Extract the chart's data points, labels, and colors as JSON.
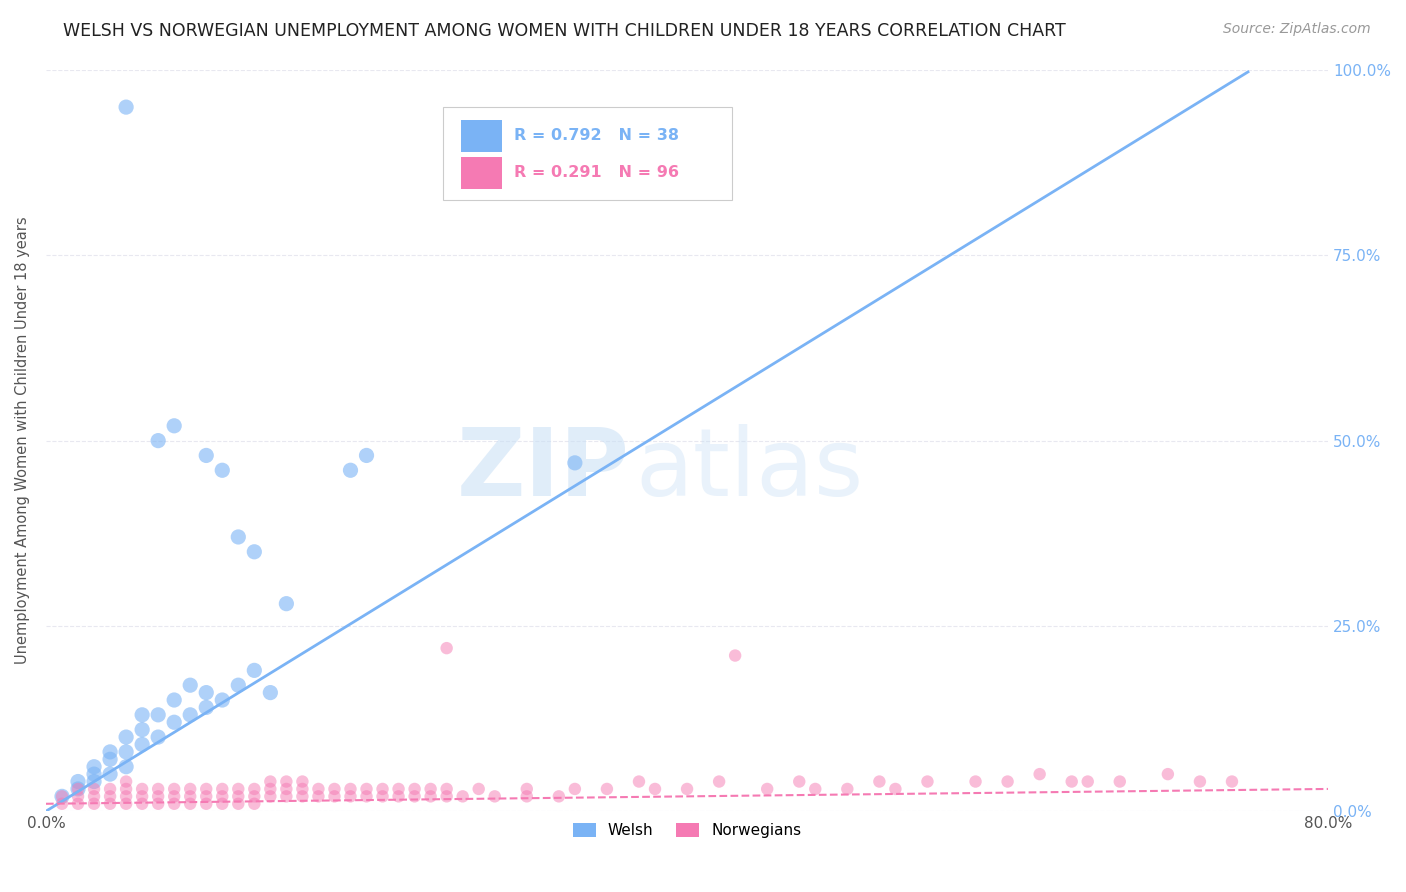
{
  "title": "WELSH VS NORWEGIAN UNEMPLOYMENT AMONG WOMEN WITH CHILDREN UNDER 18 YEARS CORRELATION CHART",
  "source": "Source: ZipAtlas.com",
  "ylabel": "Unemployment Among Women with Children Under 18 years",
  "xlim": [
    0.0,
    0.8
  ],
  "ylim": [
    0.0,
    1.0
  ],
  "xticks": [
    0.0,
    0.1,
    0.2,
    0.3,
    0.4,
    0.5,
    0.6,
    0.7,
    0.8
  ],
  "ytick_labels_right": [
    "0.0%",
    "25.0%",
    "50.0%",
    "75.0%",
    "100.0%"
  ],
  "yticks_right": [
    0.0,
    0.25,
    0.5,
    0.75,
    1.0
  ],
  "welsh_color": "#7ab3f5",
  "norwegian_color": "#f57ab3",
  "welsh_R": 0.792,
  "welsh_N": 38,
  "norwegian_R": 0.291,
  "norwegian_N": 96,
  "watermark_zip": "ZIP",
  "watermark_atlas": "atlas",
  "background_color": "#ffffff",
  "welsh_scatter": [
    [
      0.01,
      0.02
    ],
    [
      0.02,
      0.03
    ],
    [
      0.02,
      0.04
    ],
    [
      0.03,
      0.04
    ],
    [
      0.03,
      0.05
    ],
    [
      0.03,
      0.06
    ],
    [
      0.04,
      0.05
    ],
    [
      0.04,
      0.07
    ],
    [
      0.04,
      0.08
    ],
    [
      0.05,
      0.06
    ],
    [
      0.05,
      0.08
    ],
    [
      0.05,
      0.1
    ],
    [
      0.05,
      0.95
    ],
    [
      0.06,
      0.09
    ],
    [
      0.06,
      0.11
    ],
    [
      0.06,
      0.13
    ],
    [
      0.07,
      0.1
    ],
    [
      0.07,
      0.13
    ],
    [
      0.07,
      0.5
    ],
    [
      0.08,
      0.12
    ],
    [
      0.08,
      0.15
    ],
    [
      0.08,
      0.52
    ],
    [
      0.09,
      0.13
    ],
    [
      0.09,
      0.17
    ],
    [
      0.1,
      0.14
    ],
    [
      0.1,
      0.16
    ],
    [
      0.1,
      0.48
    ],
    [
      0.11,
      0.15
    ],
    [
      0.11,
      0.46
    ],
    [
      0.12,
      0.17
    ],
    [
      0.12,
      0.37
    ],
    [
      0.13,
      0.19
    ],
    [
      0.13,
      0.35
    ],
    [
      0.14,
      0.16
    ],
    [
      0.15,
      0.28
    ],
    [
      0.19,
      0.46
    ],
    [
      0.2,
      0.48
    ],
    [
      0.33,
      0.47
    ]
  ],
  "norwegian_scatter": [
    [
      0.01,
      0.01
    ],
    [
      0.01,
      0.02
    ],
    [
      0.02,
      0.01
    ],
    [
      0.02,
      0.02
    ],
    [
      0.02,
      0.03
    ],
    [
      0.03,
      0.01
    ],
    [
      0.03,
      0.02
    ],
    [
      0.03,
      0.03
    ],
    [
      0.04,
      0.01
    ],
    [
      0.04,
      0.02
    ],
    [
      0.04,
      0.03
    ],
    [
      0.05,
      0.01
    ],
    [
      0.05,
      0.02
    ],
    [
      0.05,
      0.03
    ],
    [
      0.05,
      0.04
    ],
    [
      0.06,
      0.01
    ],
    [
      0.06,
      0.02
    ],
    [
      0.06,
      0.03
    ],
    [
      0.07,
      0.01
    ],
    [
      0.07,
      0.02
    ],
    [
      0.07,
      0.03
    ],
    [
      0.08,
      0.01
    ],
    [
      0.08,
      0.02
    ],
    [
      0.08,
      0.03
    ],
    [
      0.09,
      0.01
    ],
    [
      0.09,
      0.02
    ],
    [
      0.09,
      0.03
    ],
    [
      0.1,
      0.01
    ],
    [
      0.1,
      0.02
    ],
    [
      0.1,
      0.03
    ],
    [
      0.11,
      0.01
    ],
    [
      0.11,
      0.02
    ],
    [
      0.11,
      0.03
    ],
    [
      0.12,
      0.01
    ],
    [
      0.12,
      0.02
    ],
    [
      0.12,
      0.03
    ],
    [
      0.13,
      0.01
    ],
    [
      0.13,
      0.02
    ],
    [
      0.13,
      0.03
    ],
    [
      0.14,
      0.02
    ],
    [
      0.14,
      0.03
    ],
    [
      0.14,
      0.04
    ],
    [
      0.15,
      0.02
    ],
    [
      0.15,
      0.03
    ],
    [
      0.15,
      0.04
    ],
    [
      0.16,
      0.02
    ],
    [
      0.16,
      0.03
    ],
    [
      0.16,
      0.04
    ],
    [
      0.17,
      0.02
    ],
    [
      0.17,
      0.03
    ],
    [
      0.18,
      0.02
    ],
    [
      0.18,
      0.03
    ],
    [
      0.19,
      0.02
    ],
    [
      0.19,
      0.03
    ],
    [
      0.2,
      0.02
    ],
    [
      0.2,
      0.03
    ],
    [
      0.21,
      0.02
    ],
    [
      0.21,
      0.03
    ],
    [
      0.22,
      0.02
    ],
    [
      0.22,
      0.03
    ],
    [
      0.23,
      0.02
    ],
    [
      0.23,
      0.03
    ],
    [
      0.24,
      0.02
    ],
    [
      0.24,
      0.03
    ],
    [
      0.25,
      0.02
    ],
    [
      0.25,
      0.03
    ],
    [
      0.25,
      0.22
    ],
    [
      0.26,
      0.02
    ],
    [
      0.27,
      0.03
    ],
    [
      0.28,
      0.02
    ],
    [
      0.3,
      0.02
    ],
    [
      0.3,
      0.03
    ],
    [
      0.32,
      0.02
    ],
    [
      0.33,
      0.03
    ],
    [
      0.35,
      0.03
    ],
    [
      0.37,
      0.04
    ],
    [
      0.38,
      0.03
    ],
    [
      0.4,
      0.03
    ],
    [
      0.42,
      0.04
    ],
    [
      0.43,
      0.21
    ],
    [
      0.45,
      0.03
    ],
    [
      0.47,
      0.04
    ],
    [
      0.48,
      0.03
    ],
    [
      0.5,
      0.03
    ],
    [
      0.52,
      0.04
    ],
    [
      0.53,
      0.03
    ],
    [
      0.55,
      0.04
    ],
    [
      0.58,
      0.04
    ],
    [
      0.6,
      0.04
    ],
    [
      0.62,
      0.05
    ],
    [
      0.64,
      0.04
    ],
    [
      0.65,
      0.04
    ],
    [
      0.67,
      0.04
    ],
    [
      0.7,
      0.05
    ],
    [
      0.72,
      0.04
    ],
    [
      0.74,
      0.04
    ]
  ],
  "welsh_line_x": [
    0.0,
    0.75
  ],
  "welsh_line_slope": 1.33,
  "welsh_line_intercept": 0.0,
  "norwegian_line_x": [
    0.0,
    0.8
  ],
  "norwegian_line_slope": 0.025,
  "norwegian_line_intercept": 0.01,
  "grid_color": "#e8e8f0",
  "grid_style": "--"
}
